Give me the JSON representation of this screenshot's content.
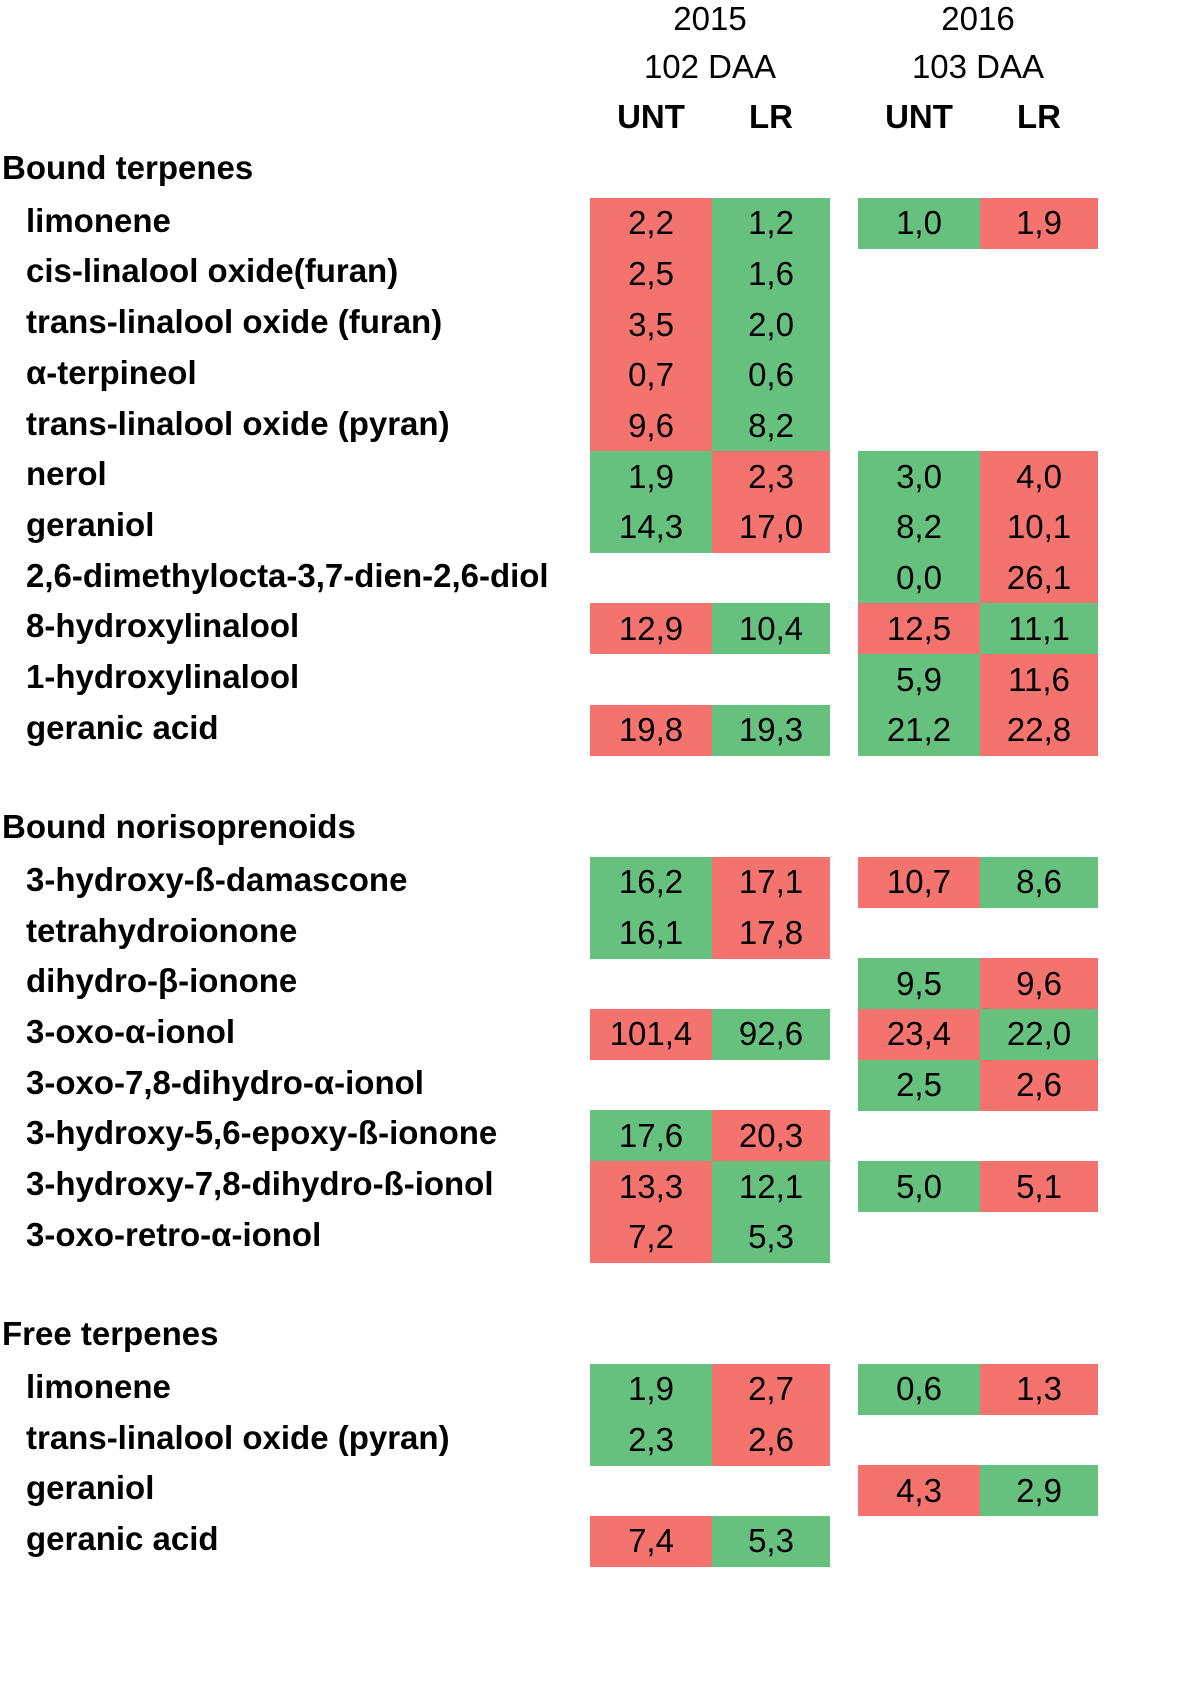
{
  "header": {
    "year_2015": "2015",
    "daa_2015": "102 DAA",
    "year_2016": "2016",
    "daa_2016": "103 DAA",
    "col_unt": "UNT",
    "col_lr": "LR"
  },
  "colors": {
    "high": "#f4736f",
    "low": "#66c17f"
  },
  "chart_data": {
    "type": "table",
    "columns": [
      "2015 UNT",
      "2015 LR",
      "2016 UNT",
      "2016 LR"
    ],
    "sections": [
      {
        "title": "Bound terpenes",
        "rows": [
          {
            "label": "limonene",
            "values": [
              "2,2",
              "1,2",
              "1,0",
              "1,9"
            ],
            "colors": [
              "high",
              "low",
              "low",
              "high"
            ]
          },
          {
            "label": "cis-linalool oxide(furan)",
            "values": [
              "2,5",
              "1,6",
              null,
              null
            ],
            "colors": [
              "high",
              "low",
              null,
              null
            ]
          },
          {
            "label": "trans-linalool oxide (furan)",
            "values": [
              "3,5",
              "2,0",
              null,
              null
            ],
            "colors": [
              "high",
              "low",
              null,
              null
            ]
          },
          {
            "label": "α-terpineol",
            "values": [
              "0,7",
              "0,6",
              null,
              null
            ],
            "colors": [
              "high",
              "low",
              null,
              null
            ]
          },
          {
            "label": "trans-linalool oxide (pyran)",
            "values": [
              "9,6",
              "8,2",
              null,
              null
            ],
            "colors": [
              "high",
              "low",
              null,
              null
            ]
          },
          {
            "label": "nerol",
            "values": [
              "1,9",
              "2,3",
              "3,0",
              "4,0"
            ],
            "colors": [
              "low",
              "high",
              "low",
              "high"
            ]
          },
          {
            "label": "geraniol",
            "values": [
              "14,3",
              "17,0",
              "8,2",
              "10,1"
            ],
            "colors": [
              "low",
              "high",
              "low",
              "high"
            ]
          },
          {
            "label": "2,6-dimethylocta-3,7-dien-2,6-diol",
            "values": [
              null,
              null,
              "0,0",
              "26,1"
            ],
            "colors": [
              null,
              null,
              "low",
              "high"
            ]
          },
          {
            "label": "8-hydroxylinalool",
            "values": [
              "12,9",
              "10,4",
              "12,5",
              "11,1"
            ],
            "colors": [
              "high",
              "low",
              "high",
              "low"
            ]
          },
          {
            "label": "1-hydroxylinalool",
            "values": [
              null,
              null,
              "5,9",
              "11,6"
            ],
            "colors": [
              null,
              null,
              "low",
              "high"
            ]
          },
          {
            "label": "geranic acid",
            "values": [
              "19,8",
              "19,3",
              "21,2",
              "22,8"
            ],
            "colors": [
              "high",
              "low",
              "low",
              "high"
            ]
          }
        ]
      },
      {
        "title": "Bound norisoprenoids",
        "rows": [
          {
            "label": "3-hydroxy-ß-damascone",
            "values": [
              "16,2",
              "17,1",
              "10,7",
              "8,6"
            ],
            "colors": [
              "low",
              "high",
              "high",
              "low"
            ]
          },
          {
            "label": "tetrahydroionone",
            "values": [
              "16,1",
              "17,8",
              null,
              null
            ],
            "colors": [
              "low",
              "high",
              null,
              null
            ]
          },
          {
            "label": "dihydro-β-ionone",
            "values": [
              null,
              null,
              "9,5",
              "9,6"
            ],
            "colors": [
              null,
              null,
              "low",
              "high"
            ]
          },
          {
            "label": "3-oxo-α-ionol",
            "values": [
              "101,4",
              "92,6",
              "23,4",
              "22,0"
            ],
            "colors": [
              "high",
              "low",
              "high",
              "low"
            ]
          },
          {
            "label": "3-oxo-7,8-dihydro-α-ionol",
            "values": [
              null,
              null,
              "2,5",
              "2,6"
            ],
            "colors": [
              null,
              null,
              "low",
              "high"
            ]
          },
          {
            "label": "3-hydroxy-5,6-epoxy-ß-ionone",
            "values": [
              "17,6",
              "20,3",
              null,
              null
            ],
            "colors": [
              "low",
              "high",
              null,
              null
            ]
          },
          {
            "label": "3-hydroxy-7,8-dihydro-ß-ionol",
            "values": [
              "13,3",
              "12,1",
              "5,0",
              "5,1"
            ],
            "colors": [
              "high",
              "low",
              "low",
              "high"
            ]
          },
          {
            "label": "3-oxo-retro-α-ionol",
            "values": [
              "7,2",
              "5,3",
              null,
              null
            ],
            "colors": [
              "high",
              "low",
              null,
              null
            ]
          }
        ]
      },
      {
        "title": "Free terpenes",
        "rows": [
          {
            "label": "limonene",
            "values": [
              "1,9",
              "2,7",
              "0,6",
              "1,3"
            ],
            "colors": [
              "low",
              "high",
              "low",
              "high"
            ]
          },
          {
            "label": "trans-linalool oxide (pyran)",
            "values": [
              "2,3",
              "2,6",
              null,
              null
            ],
            "colors": [
              "low",
              "high",
              null,
              null
            ]
          },
          {
            "label": "geraniol",
            "values": [
              null,
              null,
              "4,3",
              "2,9"
            ],
            "colors": [
              null,
              null,
              "high",
              "low"
            ]
          },
          {
            "label": "geranic acid",
            "values": [
              "7,4",
              "5,3",
              null,
              null
            ],
            "colors": [
              "high",
              "low",
              null,
              null
            ]
          }
        ]
      }
    ]
  }
}
